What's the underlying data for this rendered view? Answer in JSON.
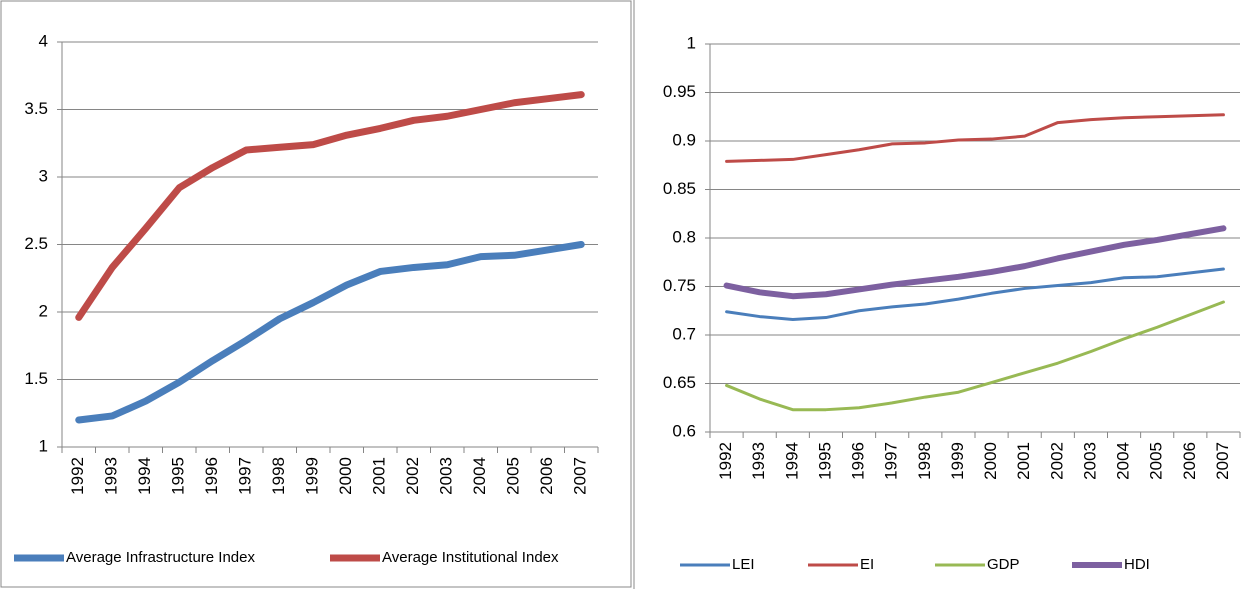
{
  "chart_data": [
    {
      "type": "line",
      "categories": [
        "1992",
        "1993",
        "1994",
        "1995",
        "1996",
        "1997",
        "1998",
        "1999",
        "2000",
        "2001",
        "2002",
        "2003",
        "2004",
        "2005",
        "2006",
        "2007"
      ],
      "series": [
        {
          "name": "Average Infrastructure Index",
          "color": "#4a7ebb",
          "values": [
            1.2,
            1.23,
            1.34,
            1.48,
            1.64,
            1.79,
            1.95,
            2.07,
            2.2,
            2.3,
            2.33,
            2.35,
            2.41,
            2.42,
            2.46,
            2.5
          ]
        },
        {
          "name": "Average Institutional Index",
          "color": "#be4b48",
          "values": [
            1.96,
            2.33,
            2.62,
            2.92,
            3.07,
            3.2,
            3.22,
            3.24,
            3.31,
            3.36,
            3.42,
            3.45,
            3.5,
            3.55,
            3.58,
            3.61
          ]
        }
      ],
      "ylim": [
        1,
        4
      ],
      "yticks": [
        1,
        1.5,
        2,
        2.5,
        3,
        3.5,
        4
      ],
      "grid": true,
      "legend": "bottom"
    },
    {
      "type": "line",
      "categories": [
        "1992",
        "1993",
        "1994",
        "1995",
        "1996",
        "1997",
        "1998",
        "1999",
        "2000",
        "2001",
        "2002",
        "2003",
        "2004",
        "2005",
        "2006",
        "2007"
      ],
      "series": [
        {
          "name": "LEI",
          "color": "#4a7ebb",
          "values": [
            0.724,
            0.719,
            0.716,
            0.718,
            0.725,
            0.729,
            0.732,
            0.737,
            0.743,
            0.748,
            0.751,
            0.754,
            0.759,
            0.76,
            0.764,
            0.768
          ]
        },
        {
          "name": "EI",
          "color": "#be4b48",
          "values": [
            0.879,
            0.88,
            0.881,
            0.886,
            0.891,
            0.897,
            0.898,
            0.901,
            0.902,
            0.905,
            0.919,
            0.922,
            0.924,
            0.925,
            0.926,
            0.927
          ]
        },
        {
          "name": "GDP",
          "color": "#98b954",
          "values": [
            0.648,
            0.634,
            0.623,
            0.623,
            0.625,
            0.63,
            0.636,
            0.641,
            0.651,
            0.661,
            0.671,
            0.683,
            0.696,
            0.708,
            0.721,
            0.734
          ]
        },
        {
          "name": "HDI",
          "color": "#7d60a0",
          "values": [
            0.751,
            0.744,
            0.74,
            0.742,
            0.747,
            0.752,
            0.756,
            0.76,
            0.765,
            0.771,
            0.779,
            0.786,
            0.793,
            0.798,
            0.804,
            0.81
          ]
        }
      ],
      "ylim": [
        0.6,
        1
      ],
      "yticks": [
        0.6,
        0.65,
        0.7,
        0.75,
        0.8,
        0.85,
        0.9,
        0.95,
        1
      ],
      "grid": true,
      "legend": "bottom"
    }
  ]
}
